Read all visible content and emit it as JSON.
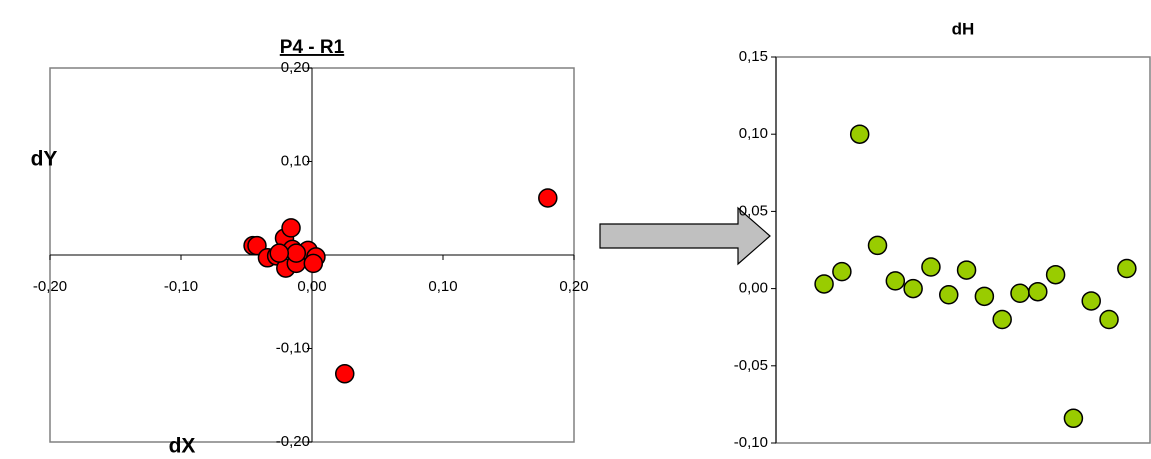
{
  "chart_data": [
    {
      "type": "scatter",
      "title": "P4 - R1",
      "x_label": "dX",
      "y_label": "dY",
      "axis_position": "zero",
      "color": "#ff0000",
      "x": [
        0.18,
        0.025,
        -0.045,
        -0.042,
        -0.034,
        -0.027,
        -0.021,
        -0.016,
        -0.015,
        -0.02,
        -0.012,
        -0.003,
        0.003,
        0.001,
        -0.012,
        -0.025
      ],
      "values": [
        0.061,
        -0.127,
        0.01,
        0.01,
        -0.003,
        -0.001,
        0.018,
        0.029,
        0.006,
        -0.014,
        -0.009,
        0.005,
        -0.002,
        -0.009,
        0.002,
        0.002
      ],
      "xlim": [
        -0.2,
        0.2
      ],
      "ylim": [
        -0.2,
        0.2
      ],
      "xticks": [
        {
          "value": -0.2,
          "label": "-0,20"
        },
        {
          "value": -0.1,
          "label": "-0,10"
        },
        {
          "value": 0,
          "label": "0,00"
        },
        {
          "value": 0.1,
          "label": "0,10"
        },
        {
          "value": 0.2,
          "label": "0,20"
        }
      ],
      "yticks": [
        {
          "value": 0.2,
          "label": "0,20"
        },
        {
          "value": 0.1,
          "label": "0,10"
        },
        {
          "value": -0.1,
          "label": "-0,10"
        },
        {
          "value": -0.2,
          "label": "-0,20"
        }
      ]
    },
    {
      "type": "scatter",
      "title": "dH",
      "axis_position": "box",
      "color": "#99cc00",
      "x": [
        1,
        2,
        3,
        4,
        5,
        6,
        7,
        8,
        9,
        10,
        11,
        12,
        13,
        14,
        15,
        16,
        17,
        18
      ],
      "values": [
        0.003,
        0.011,
        0.1,
        0.028,
        0.005,
        0.0,
        0.014,
        -0.004,
        0.012,
        -0.005,
        -0.02,
        -0.003,
        -0.002,
        0.009,
        -0.084,
        -0.008,
        -0.02,
        0.013
      ],
      "xlim": [
        -1.7,
        19.3
      ],
      "ylim": [
        -0.1,
        0.15
      ],
      "yticks": [
        {
          "value": 0.15,
          "label": "0,15"
        },
        {
          "value": 0.1,
          "label": "0,10"
        },
        {
          "value": 0.05,
          "label": "0,05"
        },
        {
          "value": 0,
          "label": "0,00"
        },
        {
          "value": -0.05,
          "label": "-0,05"
        },
        {
          "value": -0.1,
          "label": "-0,10"
        }
      ]
    }
  ]
}
